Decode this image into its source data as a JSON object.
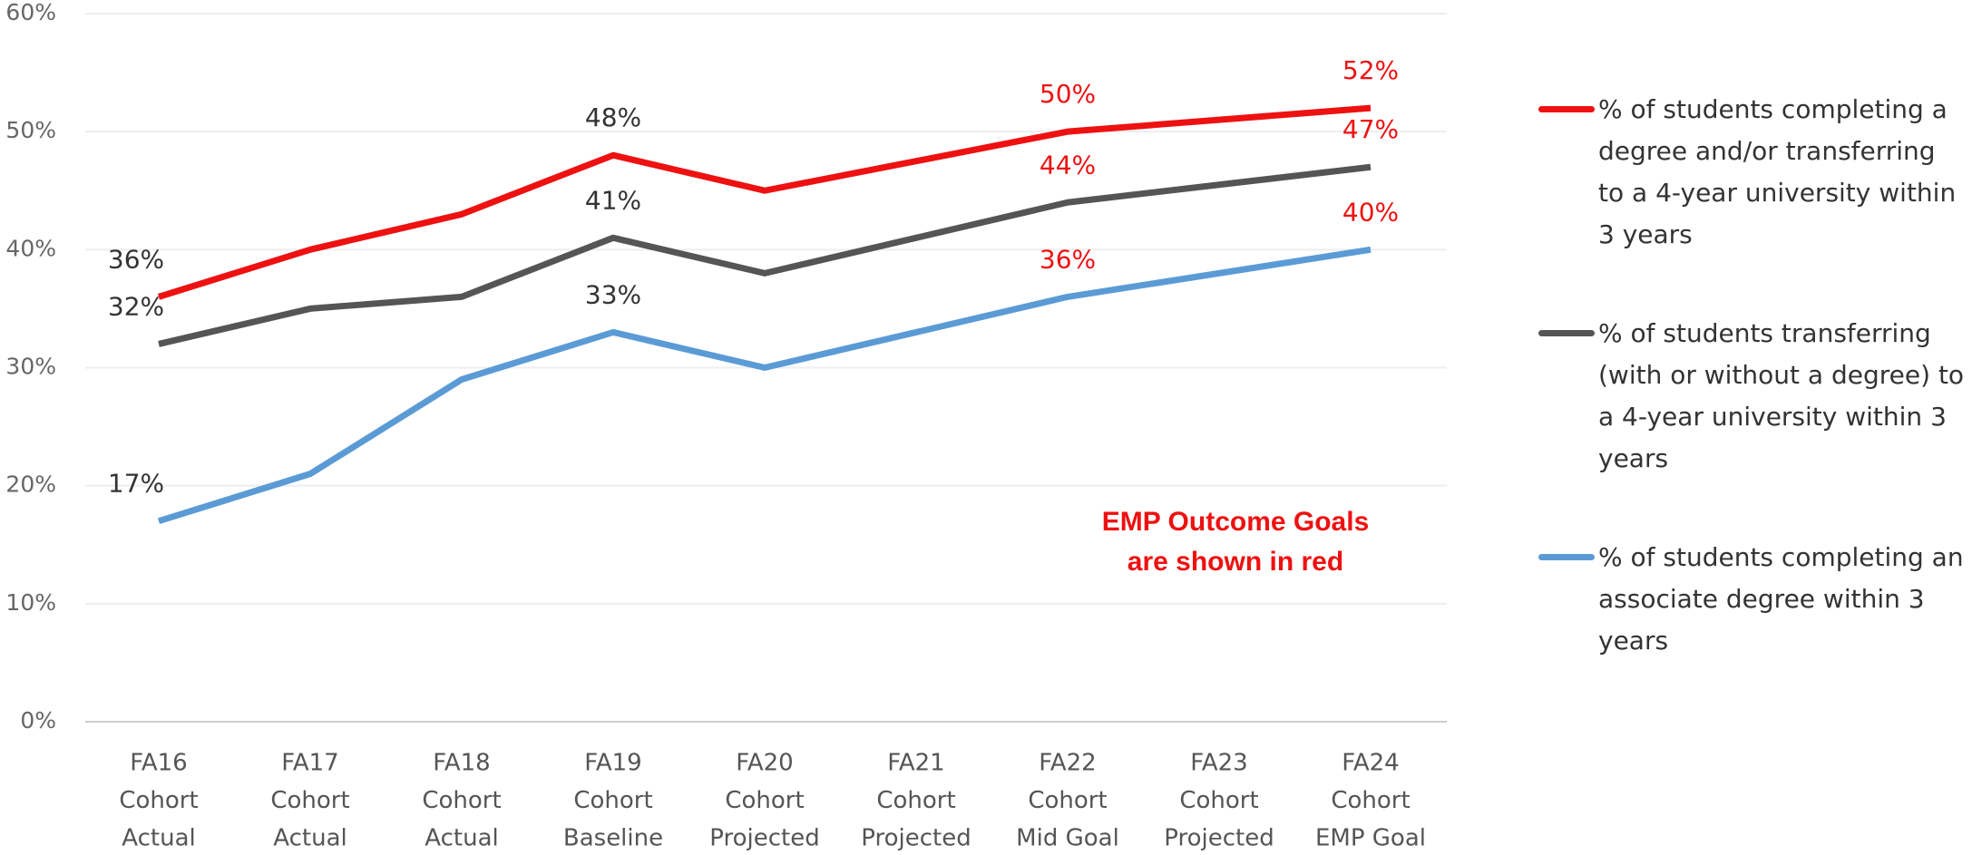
{
  "chart_data": {
    "type": "line",
    "categories": [
      [
        "FA16",
        "Cohort",
        "Actual"
      ],
      [
        "FA17",
        "Cohort",
        "Actual"
      ],
      [
        "FA18",
        "Cohort",
        "Actual"
      ],
      [
        "FA19",
        "Cohort",
        "Baseline"
      ],
      [
        "FA20",
        "Cohort",
        "Projected"
      ],
      [
        "FA21",
        "Cohort",
        "Projected"
      ],
      [
        "FA22",
        "Cohort",
        "Mid Goal"
      ],
      [
        "FA23",
        "Cohort",
        "Projected"
      ],
      [
        "FA24",
        "Cohort",
        "EMP Goal"
      ]
    ],
    "series": [
      {
        "name": "% of students completing a degree and/or transferring to a 4-year university within 3 years",
        "color": "#ee1111",
        "values": [
          36,
          40,
          43,
          48,
          45,
          47.5,
          50,
          51,
          52
        ],
        "value_labels": [
          "36%",
          null,
          null,
          "48%",
          null,
          null,
          "50%",
          null,
          "52%"
        ],
        "label_colors": [
          "#333333",
          null,
          null,
          "#333333",
          null,
          null,
          "#ee1111",
          null,
          "#ee1111"
        ]
      },
      {
        "name": "% of students transferring (with or without a degree) to a 4-year university within 3 years",
        "color": "#555555",
        "values": [
          32,
          35,
          36,
          41,
          38,
          41,
          44,
          45.5,
          47
        ],
        "value_labels": [
          "32%",
          null,
          null,
          "41%",
          null,
          null,
          "44%",
          null,
          "47%"
        ],
        "label_colors": [
          "#333333",
          null,
          null,
          "#333333",
          null,
          null,
          "#ee1111",
          null,
          "#ee1111"
        ]
      },
      {
        "name": "% of students completing an associate degree within 3 years",
        "color": "#5b9bd5",
        "values": [
          17,
          21,
          29,
          33,
          30,
          33,
          36,
          38,
          40
        ],
        "value_labels": [
          "17%",
          null,
          null,
          "33%",
          null,
          null,
          "36%",
          null,
          "40%"
        ],
        "label_colors": [
          "#333333",
          null,
          null,
          "#333333",
          null,
          null,
          "#ee1111",
          null,
          "#ee1111"
        ]
      }
    ],
    "annotation": [
      "EMP Outcome Goals",
      "are shown in red"
    ],
    "annotation_color": "#ee1111",
    "ylim": [
      0,
      60
    ],
    "yticks": [
      {
        "value": 0,
        "label": "0%"
      },
      {
        "value": 10,
        "label": "10%"
      },
      {
        "value": 20,
        "label": "20%"
      },
      {
        "value": 30,
        "label": "30%"
      },
      {
        "value": 40,
        "label": "40%"
      },
      {
        "value": 50,
        "label": "50%"
      },
      {
        "value": 60,
        "label": "60%"
      }
    ],
    "grid": true
  }
}
